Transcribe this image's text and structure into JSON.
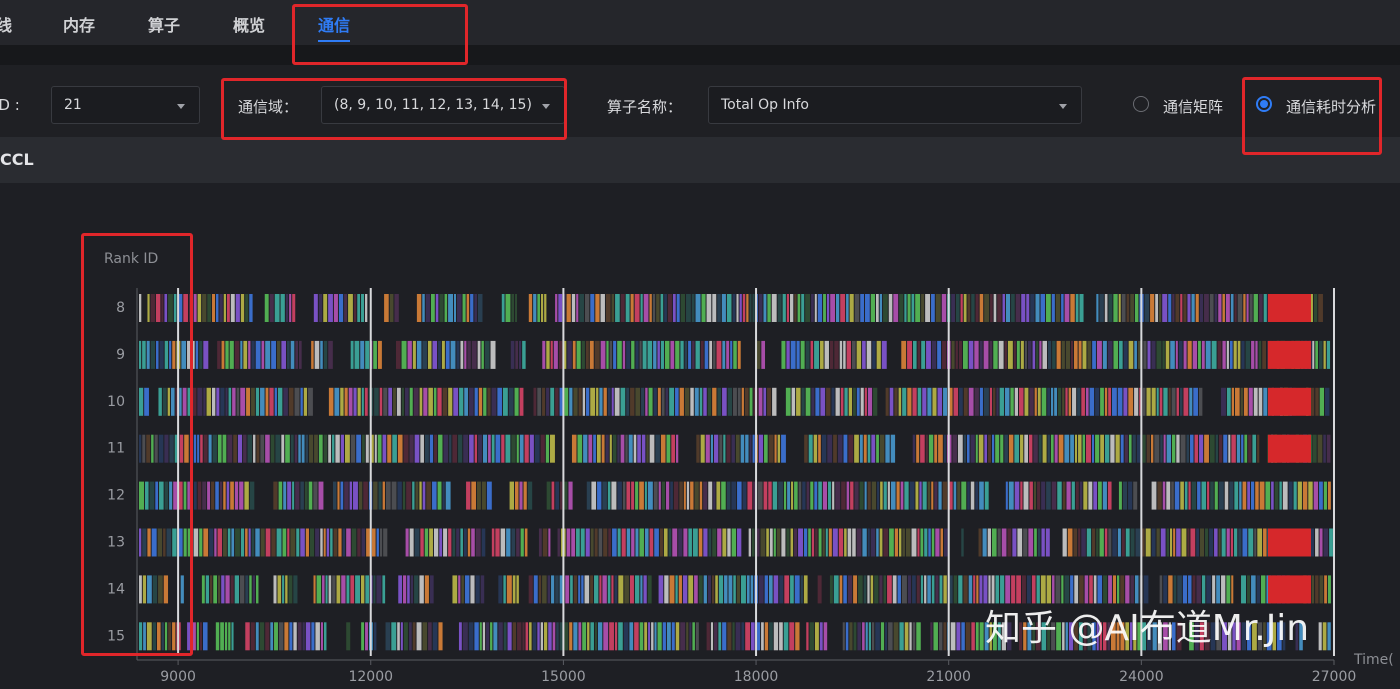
{
  "tabs": [
    {
      "label": "线",
      "active": false
    },
    {
      "label": "内存",
      "active": false
    },
    {
      "label": "算子",
      "active": false
    },
    {
      "label": "概览",
      "active": false
    },
    {
      "label": "通信",
      "active": true
    }
  ],
  "filters": {
    "card_label": "ID :",
    "card_value": "21",
    "domain_label": "通信域：",
    "domain_value": "(8, 9, 10, 11, 12, 13, 14, 15)",
    "op_label": "算子名称：",
    "op_value": "Total Op Info"
  },
  "radios": [
    {
      "label": "通信矩阵",
      "checked": false
    },
    {
      "label": "通信耗时分析",
      "checked": true
    }
  ],
  "section_title": "CCL",
  "watermark": "知乎 @AI布道Mr.Jin",
  "chart_data": {
    "type": "timeline",
    "y_label": "Rank ID",
    "x_label": "Time(",
    "categories": [
      "8",
      "9",
      "10",
      "11",
      "12",
      "13",
      "14",
      "15"
    ],
    "xlim": [
      8360,
      27000
    ],
    "xticks": [
      9000,
      12000,
      15000,
      18000,
      21000,
      24000,
      27000
    ],
    "grid": true
  }
}
